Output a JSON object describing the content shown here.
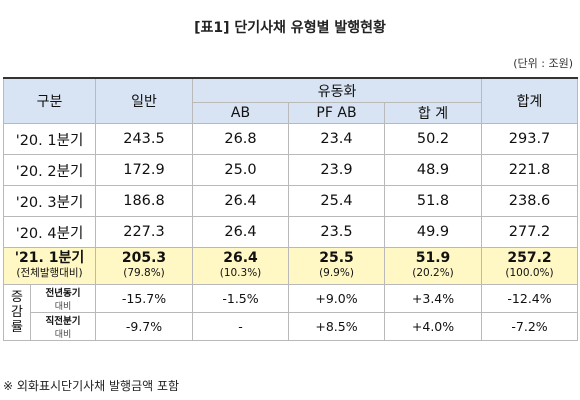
{
  "title": "[표1] 단기사채 유형별 발행현황",
  "unit": "(단위 : 조원)",
  "header": {
    "category": "구분",
    "general": "일반",
    "liquidation": "유동화",
    "ab": "AB",
    "pfab": "PF AB",
    "subtotal": "합 계",
    "total": "합계"
  },
  "rows": [
    {
      "label": "'20. 1분기",
      "general": "243.5",
      "ab": "26.8",
      "pfab": "23.4",
      "subtotal": "50.2",
      "total": "293.7"
    },
    {
      "label": "'20. 2분기",
      "general": "172.9",
      "ab": "25.0",
      "pfab": "23.9",
      "subtotal": "48.9",
      "total": "221.8"
    },
    {
      "label": "'20. 3분기",
      "general": "186.8",
      "ab": "26.4",
      "pfab": "25.4",
      "subtotal": "51.8",
      "total": "238.6"
    },
    {
      "label": "'20. 4분기",
      "general": "227.3",
      "ab": "26.4",
      "pfab": "23.5",
      "subtotal": "49.9",
      "total": "277.2"
    }
  ],
  "highlight": {
    "label": "'21. 1분기",
    "label_sub": "(전체발행대비)",
    "general": "205.3",
    "general_pct": "(79.8%)",
    "ab": "26.4",
    "ab_pct": "(10.3%)",
    "pfab": "25.5",
    "pfab_pct": "(9.9%)",
    "subtotal": "51.9",
    "subtotal_pct": "(20.2%)",
    "total": "257.2",
    "total_pct": "(100.0%)"
  },
  "change": {
    "side_label": "증감률",
    "side_chars": [
      "증",
      "감",
      "률"
    ],
    "rows": [
      {
        "label_main": "전년동기",
        "label_tail": "대비",
        "general": "-15.7%",
        "ab": "-1.5%",
        "pfab": "+9.0%",
        "subtotal": "+3.4%",
        "total": "-12.4%"
      },
      {
        "label_main": "직전분기",
        "label_tail": "대비",
        "general": "-9.7%",
        "ab": "-",
        "pfab": "+8.5%",
        "subtotal": "+4.0%",
        "total": "-7.2%"
      }
    ]
  },
  "footnote": "※ 외화표시단기사채 발행금액 포함"
}
